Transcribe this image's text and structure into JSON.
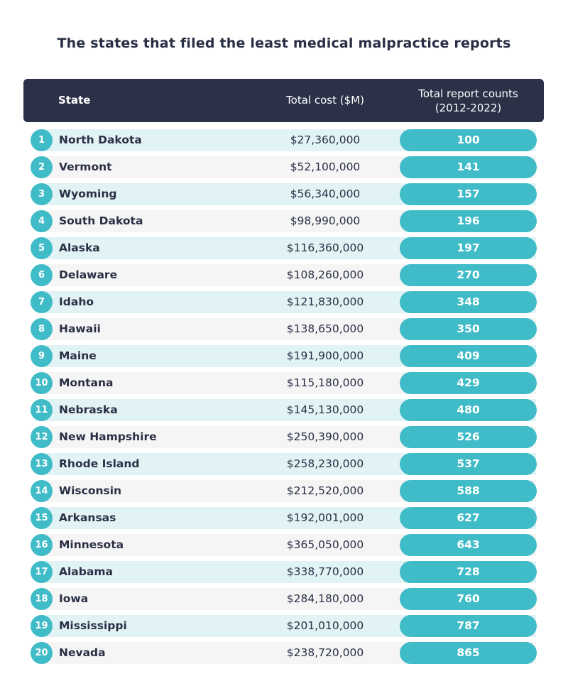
{
  "colors": {
    "header_bg": "#2b3147",
    "accent": "#3fbcc7",
    "row_alt": "#e1f3f5",
    "row_plain": "#f5f5f5",
    "text_dark": "#2a2f45"
  },
  "chart_data": {
    "type": "table",
    "title": "The states that filed the least medical malpractice reports",
    "columns": [
      "State",
      "Total cost ($M)",
      "Total report counts (2012-2022)"
    ],
    "header": {
      "state": "State",
      "cost": "Total cost ($M)",
      "count_line1": "Total report counts",
      "count_line2": "(2012-2022)"
    },
    "rows": [
      {
        "rank": "1",
        "state": "North Dakota",
        "cost": "$27,360,000",
        "count": "100"
      },
      {
        "rank": "2",
        "state": "Vermont",
        "cost": "$52,100,000",
        "count": "141"
      },
      {
        "rank": "3",
        "state": "Wyoming",
        "cost": "$56,340,000",
        "count": "157"
      },
      {
        "rank": "4",
        "state": "South Dakota",
        "cost": "$98,990,000",
        "count": "196"
      },
      {
        "rank": "5",
        "state": "Alaska",
        "cost": "$116,360,000",
        "count": "197"
      },
      {
        "rank": "6",
        "state": "Delaware",
        "cost": "$108,260,000",
        "count": "270"
      },
      {
        "rank": "7",
        "state": "Idaho",
        "cost": "$121,830,000",
        "count": "348"
      },
      {
        "rank": "8",
        "state": "Hawaii",
        "cost": "$138,650,000",
        "count": "350"
      },
      {
        "rank": "9",
        "state": "Maine",
        "cost": "$191,900,000",
        "count": "409"
      },
      {
        "rank": "10",
        "state": "Montana",
        "cost": "$115,180,000",
        "count": "429"
      },
      {
        "rank": "11",
        "state": "Nebraska",
        "cost": "$145,130,000",
        "count": "480"
      },
      {
        "rank": "12",
        "state": "New Hampshire",
        "cost": "$250,390,000",
        "count": "526"
      },
      {
        "rank": "13",
        "state": "Rhode Island",
        "cost": "$258,230,000",
        "count": "537"
      },
      {
        "rank": "14",
        "state": "Wisconsin",
        "cost": "$212,520,000",
        "count": "588"
      },
      {
        "rank": "15",
        "state": "Arkansas",
        "cost": "$192,001,000",
        "count": "627"
      },
      {
        "rank": "16",
        "state": "Minnesota",
        "cost": "$365,050,000",
        "count": "643"
      },
      {
        "rank": "17",
        "state": "Alabama",
        "cost": "$338,770,000",
        "count": "728"
      },
      {
        "rank": "18",
        "state": "Iowa",
        "cost": "$284,180,000",
        "count": "760"
      },
      {
        "rank": "19",
        "state": "Mississippi",
        "cost": "$201,010,000",
        "count": "787"
      },
      {
        "rank": "20",
        "state": "Nevada",
        "cost": "$238,720,000",
        "count": "865"
      }
    ]
  }
}
